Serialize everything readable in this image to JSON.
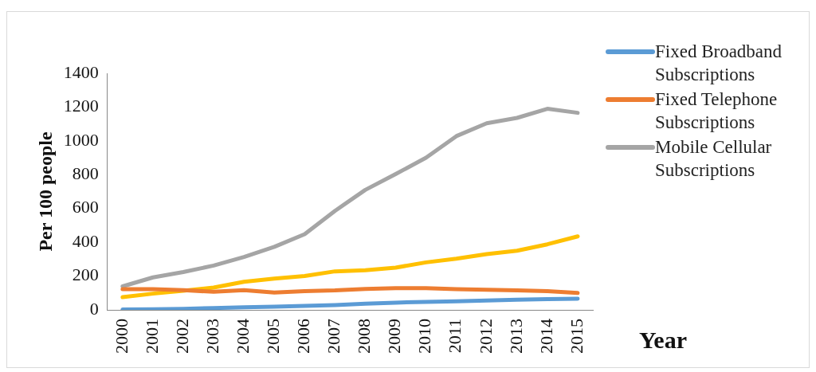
{
  "chart_data": {
    "type": "line",
    "xlabel": "Year",
    "ylabel": "Per 100 people",
    "categories": [
      "2000",
      "2001",
      "2002",
      "2003",
      "2004",
      "2005",
      "2006",
      "2007",
      "2008",
      "2009",
      "2010",
      "2011",
      "2012",
      "2013",
      "2014",
      "2015"
    ],
    "series": [
      {
        "name": "Fixed Broadband Subscriptions",
        "color": "#5b9bd5",
        "values": [
          2,
          4,
          6,
          11,
          15,
          19,
          23,
          28,
          36,
          43,
          47,
          51,
          55,
          60,
          64,
          66
        ]
      },
      {
        "name": "Fixed Telephone Subscriptions",
        "color": "#ed7d31",
        "values": [
          122,
          122,
          117,
          107,
          117,
          102,
          111,
          115,
          124,
          128,
          128,
          122,
          119,
          115,
          111,
          100
        ]
      },
      {
        "name": "Mobile Cellular Subscriptions",
        "color": "#a5a5a5",
        "values": [
          139,
          192,
          224,
          262,
          313,
          373,
          448,
          586,
          710,
          804,
          900,
          1028,
          1104,
          1136,
          1190,
          1166
        ]
      },
      {
        "color": "#ffc000",
        "values": [
          75,
          96,
          113,
          132,
          166,
          185,
          200,
          228,
          235,
          250,
          281,
          303,
          330,
          350,
          388,
          435
        ]
      }
    ],
    "ylim": [
      0,
      1400
    ],
    "yticks": [
      0,
      200,
      400,
      600,
      800,
      1000,
      1200,
      1400
    ],
    "grid": false,
    "legend": "right",
    "marker": "none",
    "line_style": "solid"
  }
}
